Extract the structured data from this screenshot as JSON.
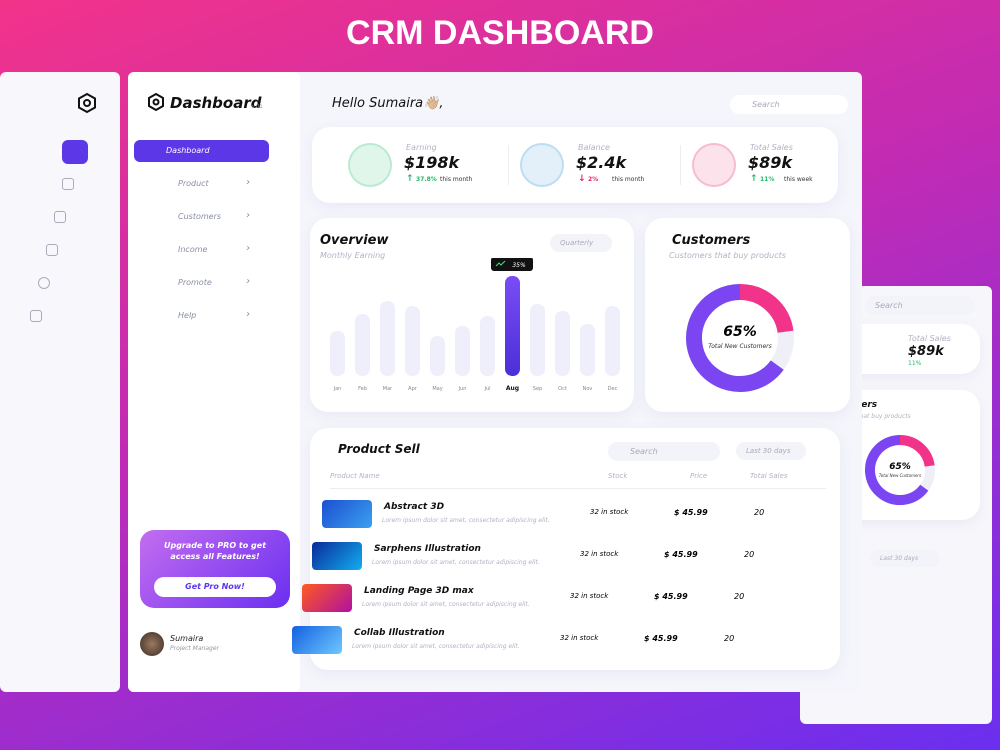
{
  "banner_title": "CRM DASHBOARD",
  "sidebar": {
    "brand": "Dashboard",
    "version": "v.01",
    "menu": [
      "Dashboard",
      "Product",
      "Customers",
      "Income",
      "Promote",
      "Help"
    ],
    "upgrade": {
      "text": "Upgrade to PRO to get access all Features!",
      "button": "Get Pro Now!"
    },
    "user": {
      "name": "Sumaira",
      "role": "Project Manager"
    }
  },
  "header": {
    "greeting": "Hello Sumaira👋🏼,",
    "search": "Search"
  },
  "stats": [
    {
      "label": "Earning",
      "value": "$198k",
      "change": "37.8%",
      "period": "this month",
      "trend": "up",
      "color": "#1fb86a"
    },
    {
      "label": "Balance",
      "value": "$2.4k",
      "change": "2%",
      "period": "this month",
      "trend": "down",
      "color": "#2a8fd8"
    },
    {
      "label": "Total Sales",
      "value": "$89k",
      "change": "11%",
      "period": "this week",
      "trend": "up",
      "color": "#e8245f"
    }
  ],
  "overview": {
    "title": "Overview",
    "subtitle": "Monthly Earning",
    "filter": "Quarterly",
    "highlight_label": "35%",
    "chart": {
      "type": "bar",
      "categories": [
        "Jan",
        "Feb",
        "Mar",
        "Apr",
        "May",
        "Jun",
        "Jul",
        "Aug",
        "Sep",
        "Oct",
        "Nov",
        "Dec"
      ],
      "values": [
        45,
        62,
        75,
        70,
        40,
        50,
        60,
        100,
        72,
        65,
        52,
        70
      ]
    }
  },
  "customers": {
    "title": "Customers",
    "subtitle": "Customers that buy products",
    "chart": {
      "type": "pie",
      "value": 65,
      "value_label": "65%",
      "caption": "Total New Customers"
    }
  },
  "products": {
    "title": "Product Sell",
    "search": "Search",
    "filter": "Last 30 days",
    "columns": [
      "Product Name",
      "Stock",
      "Price",
      "Total Sales"
    ],
    "rows": [
      {
        "name": "Abstract 3D",
        "description": "Lorem ipsum dolor sit amet, consectetur adipiscing elit.",
        "stock": "32 in stock",
        "price": "$ 45.99",
        "sales": "20"
      },
      {
        "name": "Sarphens Illustration",
        "description": "Lorem ipsum dolor sit amet, consectetur adipiscing elit.",
        "stock": "32 in stock",
        "price": "$ 45.99",
        "sales": "20"
      },
      {
        "name": "Landing Page 3D max",
        "description": "Lorem ipsum dolor sit amet, consectetur adipiscing elit.",
        "stock": "32 in stock",
        "price": "$ 45.99",
        "sales": "20"
      },
      {
        "name": "Collab Illustration",
        "description": "Lorem ipsum dolor sit amet, consectetur adipiscing elit.",
        "stock": "32 in stock",
        "price": "$ 45.99",
        "sales": "20"
      }
    ]
  }
}
